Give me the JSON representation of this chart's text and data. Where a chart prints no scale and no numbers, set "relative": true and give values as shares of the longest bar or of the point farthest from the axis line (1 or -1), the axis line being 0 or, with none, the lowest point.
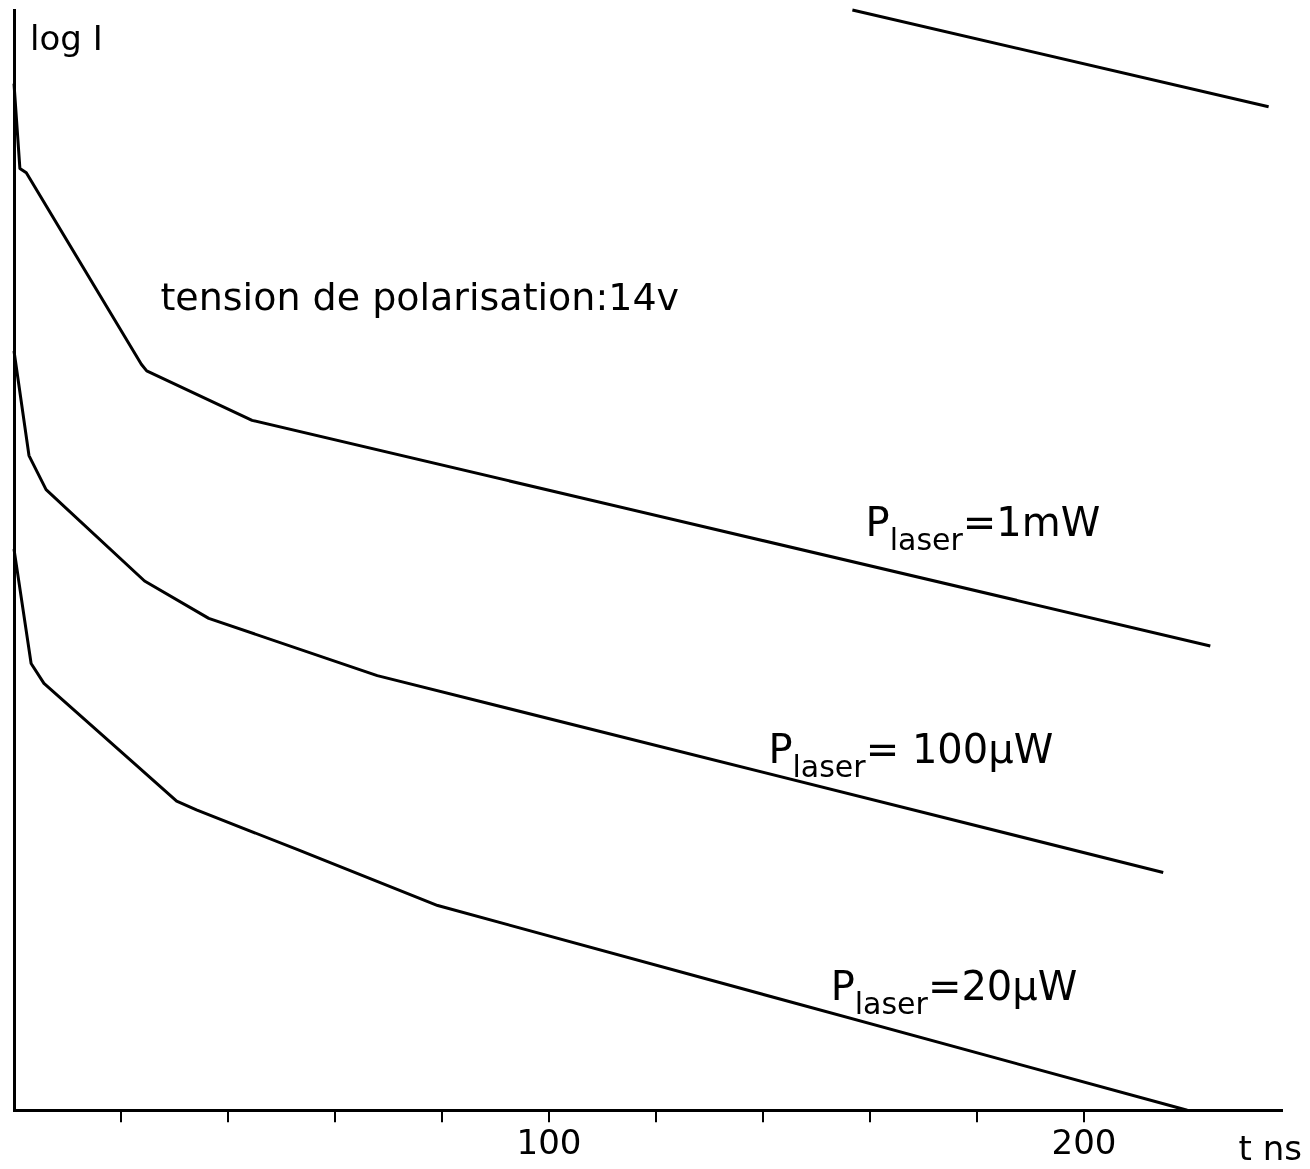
{
  "chart_data": {
    "type": "line",
    "relative": true,
    "xlabel": "t ns",
    "ylabel": "log I",
    "marker": "none",
    "line_style": "solid",
    "grid": false,
    "legend": false,
    "annotations": [
      "tension de polarisation:14v"
    ],
    "xlim": [
      0,
      237
    ],
    "xticks": [
      {
        "value": 20,
        "label": null
      },
      {
        "value": 40,
        "label": null
      },
      {
        "value": 60,
        "label": null
      },
      {
        "value": 80,
        "label": null
      },
      100,
      {
        "value": 120,
        "label": null
      },
      {
        "value": 140,
        "label": null
      },
      {
        "value": 160,
        "label": null
      },
      {
        "value": 180,
        "label": null
      },
      200
    ],
    "series": [
      {
        "color": "#000000",
        "x": [
          156.7,
          234.5
        ],
        "values": [
          1.0,
          0.912
        ]
      },
      {
        "name": "P$_{laser}$=1mW",
        "color": "#000000",
        "x": [
          0,
          1.1,
          2.3,
          23.8,
          24.8,
          44.5,
          223.6
        ],
        "values": [
          0.933,
          0.856,
          0.852,
          0.678,
          0.672,
          0.627,
          0.422
        ]
      },
      {
        "name": "P$_{laser}$= 100µW",
        "color": "#000000",
        "x": [
          0,
          2.8,
          6.0,
          24.4,
          36.4,
          67.9,
          214.8
        ],
        "values": [
          0.69,
          0.595,
          0.564,
          0.481,
          0.447,
          0.395,
          0.216
        ]
      },
      {
        "name": "P$_{laser}$=20µW",
        "color": "#000000",
        "x": [
          0,
          3.2,
          5.6,
          30.4,
          34.1,
          52.9,
          79.2,
          219.3
        ],
        "values": [
          0.51,
          0.406,
          0.388,
          0.281,
          0.273,
          0.237,
          0.186,
          0
        ]
      }
    ]
  }
}
